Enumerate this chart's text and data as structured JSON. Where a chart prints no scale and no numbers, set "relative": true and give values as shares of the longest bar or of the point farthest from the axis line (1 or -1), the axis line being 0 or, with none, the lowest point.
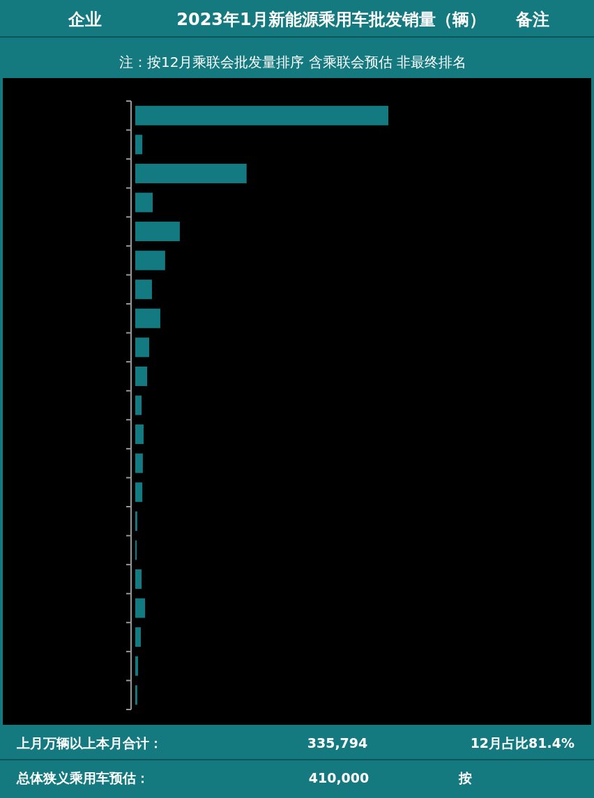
{
  "chart_data": {
    "type": "bar",
    "orientation": "horizontal",
    "relative": true,
    "title": "2023年1月新能源乘用车批发销量（辆）",
    "subtitle": "注：按12月乘联会批发量排序 含乘联会预估 非最终排名",
    "annotations": [
      "企业",
      "备注",
      "上月万辆以上本月合计：",
      "335,794",
      "12月占比81.4%",
      "总体狭义乘用车预估：",
      "410,000",
      "按"
    ],
    "categories": [
      null,
      null,
      null,
      null,
      null,
      null,
      null,
      null,
      null,
      null,
      null,
      null,
      null,
      null,
      null,
      null,
      null,
      null,
      null,
      null,
      null
    ],
    "values": [
      1,
      0.028,
      0.44,
      0.069,
      0.176,
      0.118,
      0.066,
      0.099,
      0.055,
      0.047,
      0.025,
      0.033,
      0.03,
      0.028,
      0.008,
      0.006,
      0.025,
      0.039,
      0.022,
      0.011,
      0.008
    ],
    "color": "#127a80"
  }
}
